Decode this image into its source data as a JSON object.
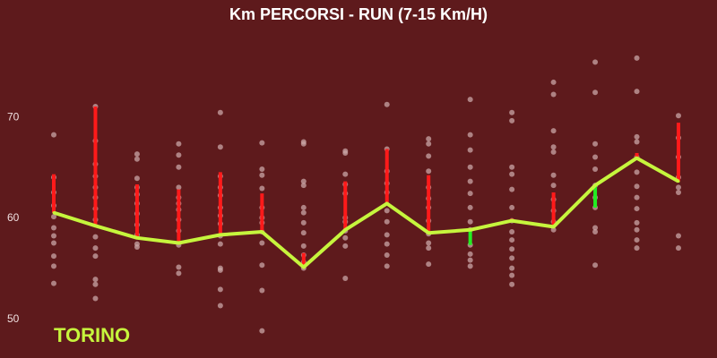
{
  "chart_data": {
    "type": "line",
    "title": "Km PERCORSI - RUN (7-15 Km/H)",
    "annotation": "TORINO",
    "ylim": [
      47,
      78
    ],
    "yticks": [
      50,
      60,
      70
    ],
    "grid": false,
    "colors": {
      "background": "#5e1a1c",
      "line": "#c6f53d",
      "bar_up": "#ff1a1a",
      "bar_down": "#22ee22",
      "dots": "#c9a5a5"
    },
    "series": [
      {
        "values": [
          60.5,
          59.2,
          58.0,
          57.5,
          58.3,
          58.6,
          55.1,
          58.8,
          61.4,
          58.5,
          58.8,
          59.7,
          59.1,
          63.2,
          65.9,
          63.6
        ],
        "ranges": [
          [
            60.5,
            64.3
          ],
          [
            59.2,
            71.0
          ],
          [
            58.0,
            63.3
          ],
          [
            57.5,
            62.8
          ],
          [
            58.3,
            64.5
          ],
          [
            58.6,
            62.4
          ],
          [
            55.1,
            56.5
          ],
          [
            58.8,
            63.6
          ],
          [
            61.4,
            66.8
          ],
          [
            58.5,
            64.2
          ],
          [
            57.3,
            58.8
          ],
          [
            59.7,
            59.9
          ],
          [
            59.1,
            62.5
          ],
          [
            61.0,
            63.2
          ],
          [
            65.9,
            66.4
          ],
          [
            63.6,
            69.4
          ]
        ]
      }
    ],
    "points": [
      [
        68.2,
        64.0,
        62.5,
        61.2,
        60.1,
        59.0,
        58.2,
        57.5,
        56.2,
        55.2,
        53.5
      ],
      [
        71.0,
        67.6,
        65.3,
        64.1,
        63.0,
        62.0,
        60.9,
        59.8,
        58.1,
        57.0,
        56.2,
        53.9,
        53.4,
        52.0
      ],
      [
        66.3,
        65.8,
        63.9,
        63.0,
        62.3,
        61.4,
        60.4,
        59.3,
        58.3,
        57.4,
        57.1
      ],
      [
        67.3,
        66.2,
        65.0,
        63.0,
        62.0,
        61.4,
        60.8,
        59.8,
        58.7,
        57.3,
        55.1,
        54.5
      ],
      [
        70.4,
        67.0,
        64.1,
        63.0,
        62.2,
        61.0,
        60.2,
        59.4,
        58.2,
        57.4,
        55.0,
        54.8,
        52.9,
        51.3
      ],
      [
        67.4,
        64.8,
        64.2,
        62.9,
        61.0,
        60.0,
        59.5,
        58.6,
        57.5,
        55.3,
        52.8,
        48.8
      ],
      [
        67.5,
        67.3,
        63.6,
        63.2,
        61.0,
        60.5,
        59.5,
        58.5,
        57.2,
        56.3,
        55.6,
        55.0
      ],
      [
        66.6,
        66.4,
        64.3,
        63.3,
        62.4,
        60.0,
        59.6,
        58.7,
        58.0,
        57.2,
        54.0
      ],
      [
        71.2,
        66.8,
        64.6,
        63.4,
        62.5,
        60.7,
        59.6,
        58.3,
        57.4,
        56.3,
        55.2
      ],
      [
        67.8,
        67.3,
        66.1,
        64.6,
        63.0,
        61.9,
        61.0,
        59.7,
        58.4,
        57.5,
        57.0,
        55.4
      ],
      [
        71.7,
        68.2,
        66.7,
        65.0,
        63.6,
        62.4,
        61.0,
        59.6,
        58.8,
        57.3,
        56.4,
        55.8,
        55.2
      ],
      [
        70.4,
        69.6,
        65.0,
        64.3,
        62.8,
        61.0,
        59.7,
        58.6,
        57.8,
        56.9,
        56.0,
        55.0,
        54.3,
        53.4
      ],
      [
        73.4,
        72.2,
        68.6,
        67.0,
        66.5,
        64.2,
        63.2,
        61.8,
        60.7,
        59.6,
        58.8
      ],
      [
        75.4,
        72.4,
        67.3,
        66.0,
        64.8,
        63.2,
        62.0,
        61.0,
        59.0,
        58.6,
        55.3
      ],
      [
        75.8,
        72.5,
        68.0,
        67.5,
        66.0,
        64.5,
        63.1,
        62.0,
        60.9,
        59.5,
        58.8,
        57.8,
        57.0
      ],
      [
        70.1,
        67.9,
        66.0,
        64.0,
        63.0,
        62.5,
        58.2,
        57.0
      ]
    ]
  }
}
